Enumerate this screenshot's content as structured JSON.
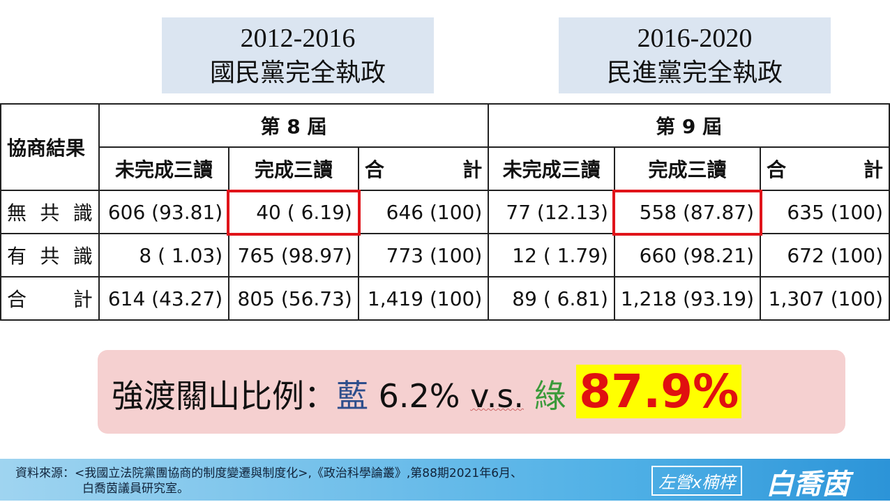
{
  "headers": {
    "left": {
      "years": "2012-2016",
      "label": "國民黨完全執政"
    },
    "right": {
      "years": "2016-2020",
      "label": "民進黨完全執政"
    }
  },
  "table": {
    "corner": "協商結果",
    "groups": [
      "第 8 屆",
      "第 9 屆"
    ],
    "columns": [
      "未完成三讀",
      "完成三讀",
      "合 計",
      "未完成三讀",
      "完成三讀",
      "合 計"
    ],
    "rows": [
      {
        "label": "無 共 識",
        "cells": [
          "606 (93.81)",
          "40 ( 6.19)",
          "646 (100)",
          "77 (12.13)",
          "558 (87.87)",
          "635 (100)"
        ]
      },
      {
        "label": "有 共 識",
        "cells": [
          "8 ( 1.03)",
          "765 (98.97)",
          "773 (100)",
          "12 ( 1.79)",
          "660 (98.21)",
          "672 (100)"
        ]
      },
      {
        "label": "合 計",
        "cells": [
          "614 (43.27)",
          "805 (56.73)",
          "1,419 (100)",
          "89 ( 6.81)",
          "1,218 (93.19)",
          "1,307 (100)"
        ]
      }
    ]
  },
  "summary": {
    "prefix": "強渡關山比例：",
    "blue": "藍",
    "blue_value": "6.2%",
    "vs": "v.s.",
    "green": "綠",
    "green_value": "87.9%"
  },
  "footer": {
    "source_line1": "資料來源：<我國立法院黨團協商的制度變遷與制度化>,《政治科學論叢》,第88期2021年6月、",
    "source_line2": "白喬茵議員研究室。",
    "logo1": "左營x楠梓",
    "logo2": "白喬茵"
  }
}
